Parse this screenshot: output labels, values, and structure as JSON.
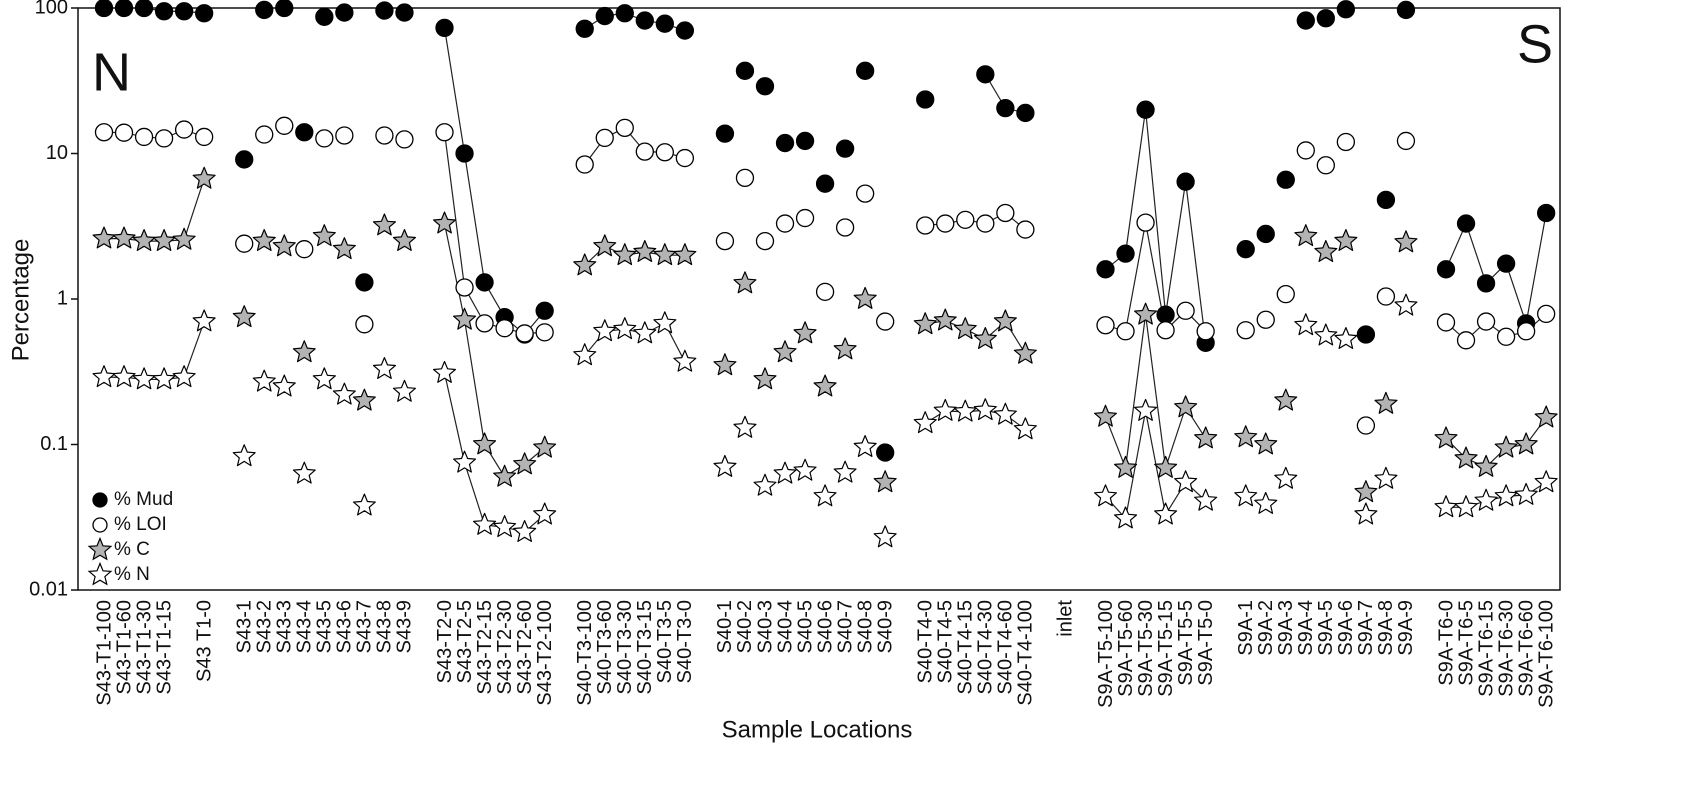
{
  "chart_data": {
    "type": "line",
    "x_label": "Sample Locations",
    "y_label": "Percentage",
    "y_scale": "log",
    "ylim": [
      0.01,
      100
    ],
    "yticks": [
      0.01,
      0.1,
      1,
      10,
      100
    ],
    "legend": "lower-left",
    "annotations": [
      "N",
      "S"
    ],
    "groups": [
      {
        "connected": true,
        "categories": [
          "S43-T1-100",
          "S43-T1-60",
          "S43-T1-30",
          "S43-T1-15",
          null,
          "S43 T1-0"
        ]
      },
      {
        "connected": false,
        "categories": [
          "S43-1",
          "S43-2",
          "S43-3",
          "S43-4",
          "S43-5",
          "S43-6",
          "S43-7",
          "S43-8",
          "S43-9"
        ]
      },
      {
        "connected": true,
        "categories": [
          "S43-T2-0",
          "S43-T2-5",
          "S43-T2-15",
          "S43-T2-30",
          "S43-T2-60",
          "S43-T2-100"
        ]
      },
      {
        "connected": true,
        "categories": [
          "S40-T3-100",
          "S40-T3-60",
          "S40-T3-30",
          "S40-T3-15",
          "S40-T3-5",
          "S40-T3-0"
        ]
      },
      {
        "connected": false,
        "categories": [
          "S40-1",
          "S40-2",
          "S40-3",
          "S40-4",
          "S40-5",
          "S40-6",
          "S40-7",
          "S40-8",
          "S40-9"
        ]
      },
      {
        "connected": true,
        "categories": [
          "S40-T4-0",
          "S40-T4-5",
          "S40-T4-15",
          "S40-T4-30",
          "S40-T4-60",
          "S40-T4-100"
        ]
      },
      {
        "connected": false,
        "categories": [
          "inlet"
        ]
      },
      {
        "connected": true,
        "categories": [
          "S9A-T5-100",
          "S9A-T5-60",
          "S9A-T5-30",
          "S9A-T5-15",
          "S9A-T5-5",
          "S9A-T5-0"
        ]
      },
      {
        "connected": false,
        "categories": [
          "S9A-1",
          "S9A-2",
          "S9A-3",
          "S9A-4",
          "S9A-5",
          "S9A-6",
          "S9A-7",
          "S9A-8",
          "S9A-9"
        ]
      },
      {
        "connected": true,
        "categories": [
          "S9A-T6-0",
          "S9A-T6-5",
          "S9A-T6-15",
          "S9A-T6-30",
          "S9A-T6-60",
          "S9A-T6-100"
        ]
      }
    ],
    "series": [
      {
        "name": "% Mud",
        "marker": "circle",
        "color": "#000000",
        "values": [
          [
            100,
            100,
            100,
            95,
            95,
            92
          ],
          [
            9.1,
            97,
            100,
            14,
            87,
            93,
            1.3,
            96,
            93
          ],
          [
            73,
            10,
            1.3,
            0.75,
            0.57,
            0.83
          ],
          [
            72,
            88,
            92,
            82,
            78,
            70
          ],
          [
            13.7,
            37,
            29,
            11.8,
            12.2,
            6.2,
            10.8,
            37,
            0.088
          ],
          [
            23.5,
            null,
            null,
            35,
            20.5,
            19
          ],
          [
            null
          ],
          [
            1.6,
            2.05,
            20,
            0.78,
            6.4,
            0.5
          ],
          [
            2.2,
            2.8,
            6.6,
            82,
            85,
            98,
            0.57,
            4.8,
            97
          ],
          [
            1.6,
            3.3,
            1.28,
            1.75,
            0.68,
            3.9
          ]
        ]
      },
      {
        "name": "% LOI",
        "marker": "circle",
        "color": "#ffffff",
        "values": [
          [
            14,
            13.9,
            13,
            12.7,
            14.6,
            13
          ],
          [
            2.4,
            13.5,
            15.5,
            2.2,
            12.7,
            13.3,
            0.67,
            13.3,
            12.5
          ],
          [
            14,
            1.2,
            0.68,
            0.63,
            0.58,
            0.59
          ],
          [
            8.4,
            12.8,
            15,
            10.3,
            10.2,
            9.3
          ],
          [
            2.5,
            6.8,
            2.5,
            3.3,
            3.6,
            1.12,
            3.1,
            5.3,
            0.7
          ],
          [
            3.2,
            3.3,
            3.5,
            3.3,
            3.9,
            3.0
          ],
          [
            null
          ],
          [
            0.66,
            0.6,
            3.35,
            0.61,
            0.83,
            0.6
          ],
          [
            0.61,
            0.72,
            1.08,
            10.5,
            8.3,
            12,
            0.135,
            1.04,
            12.2
          ],
          [
            0.69,
            0.52,
            0.7,
            0.55,
            0.6,
            0.79
          ]
        ]
      },
      {
        "name": "% C",
        "marker": "star",
        "color": "#b3b3b3",
        "values": [
          [
            2.6,
            2.6,
            2.5,
            2.5,
            2.55,
            6.7
          ],
          [
            0.75,
            2.5,
            2.3,
            0.43,
            2.7,
            2.2,
            0.2,
            3.2,
            2.5
          ],
          [
            3.3,
            0.72,
            0.1,
            0.06,
            0.073,
            0.095
          ],
          [
            1.7,
            2.3,
            2.0,
            2.1,
            2.0,
            2.0
          ],
          [
            0.35,
            1.28,
            0.28,
            0.43,
            0.58,
            0.25,
            0.45,
            1.0,
            0.055
          ],
          [
            0.67,
            0.71,
            0.62,
            0.53,
            0.7,
            0.42
          ],
          [
            null
          ],
          [
            0.155,
            0.069,
            0.78,
            0.069,
            0.18,
            0.11
          ],
          [
            0.112,
            0.1,
            0.2,
            2.7,
            2.1,
            2.5,
            0.047,
            0.19,
            2.45
          ],
          [
            0.11,
            0.08,
            0.07,
            0.095,
            0.1,
            0.153
          ]
        ]
      },
      {
        "name": "% N",
        "marker": "star",
        "color": "#ffffff",
        "values": [
          [
            0.29,
            0.29,
            0.28,
            0.28,
            0.29,
            0.7
          ],
          [
            0.083,
            0.27,
            0.25,
            0.063,
            0.28,
            0.22,
            0.038,
            0.33,
            0.23
          ],
          [
            0.31,
            0.075,
            0.028,
            0.027,
            0.025,
            0.033
          ],
          [
            0.41,
            0.6,
            0.62,
            0.58,
            0.68,
            0.37
          ],
          [
            0.07,
            0.13,
            0.052,
            0.063,
            0.066,
            0.044,
            0.064,
            0.096,
            0.023
          ],
          [
            0.14,
            0.17,
            0.168,
            0.172,
            0.16,
            0.127
          ],
          [
            null
          ],
          [
            0.044,
            0.031,
            0.17,
            0.033,
            0.055,
            0.041
          ],
          [
            0.044,
            0.039,
            0.058,
            0.66,
            0.56,
            0.53,
            0.033,
            0.058,
            0.9
          ],
          [
            0.037,
            0.037,
            0.041,
            0.044,
            0.045,
            0.055
          ]
        ]
      }
    ]
  }
}
